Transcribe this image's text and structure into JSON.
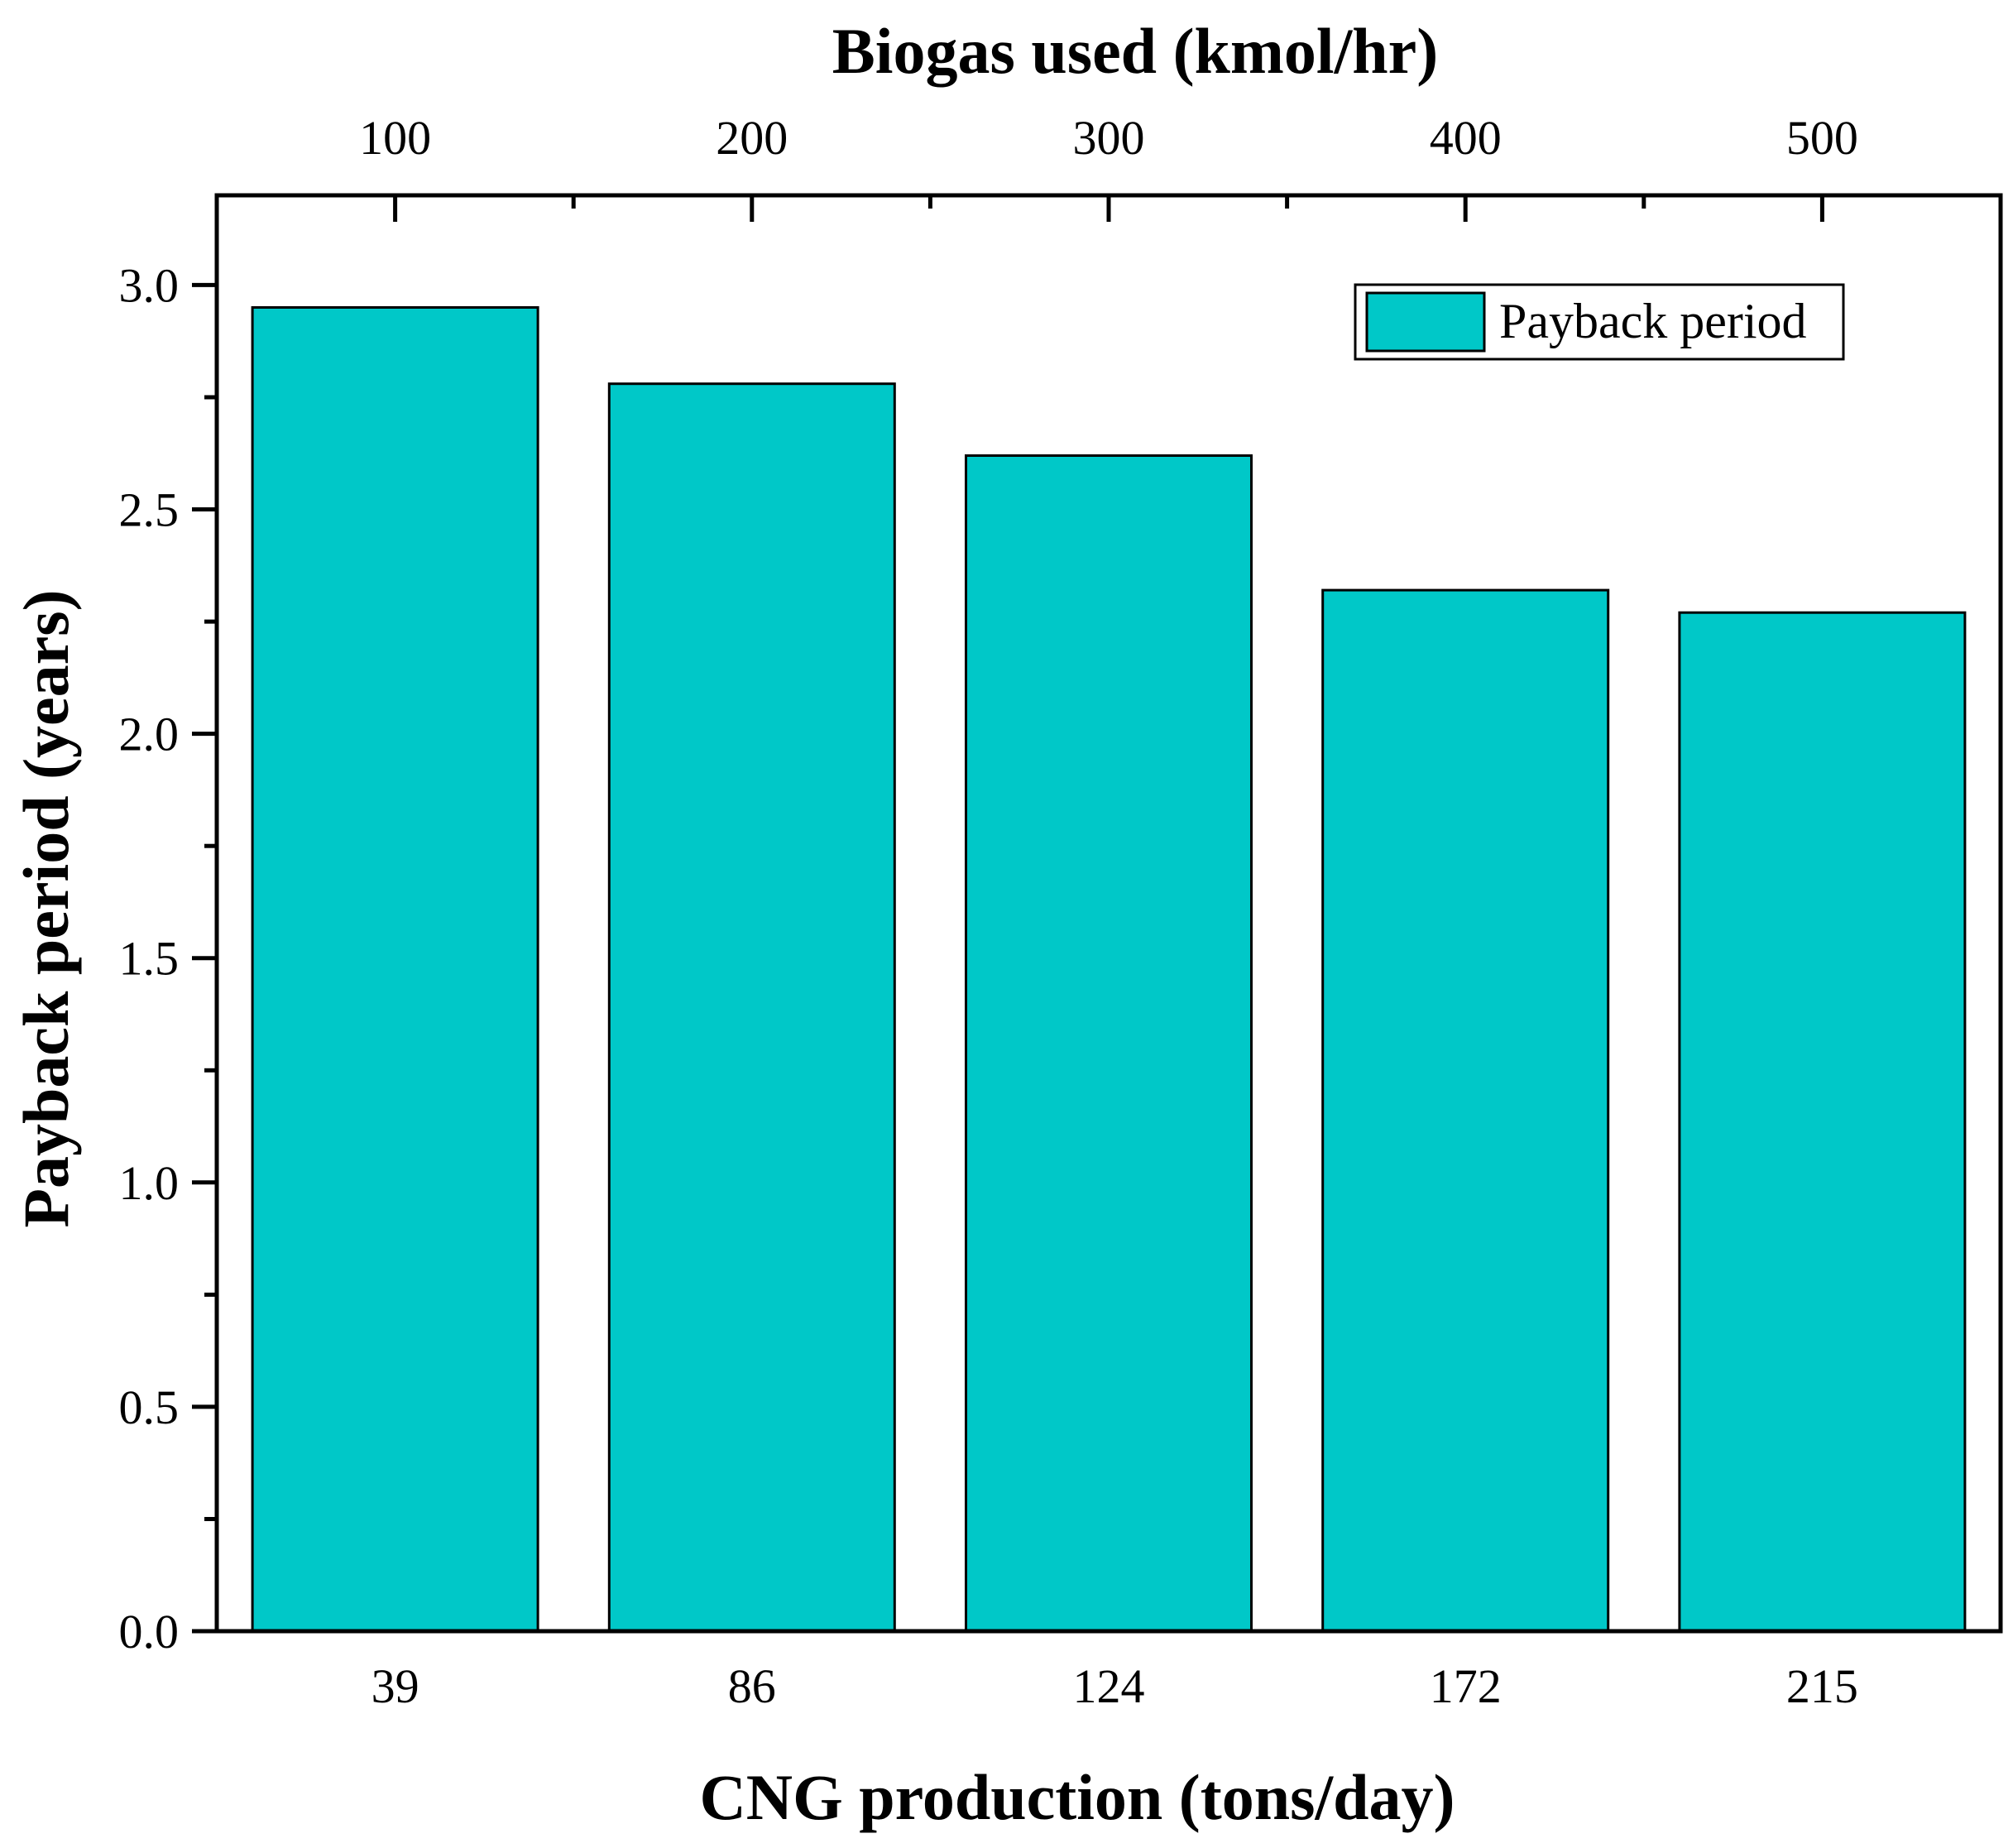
{
  "chart_data": {
    "type": "bar",
    "categories": [
      "39",
      "86",
      "124",
      "172",
      "215"
    ],
    "series": [
      {
        "name": "Payback period",
        "values": [
          2.95,
          2.78,
          2.62,
          2.32,
          2.27
        ]
      }
    ],
    "title": "",
    "xlabel": "CNG production (tons/day)",
    "ylabel": "Payback period (years)",
    "ylim": [
      0,
      3.2
    ],
    "yticks": [
      "0.0",
      "0.5",
      "1.0",
      "1.5",
      "2.0",
      "2.5",
      "3.0"
    ],
    "ytick_values": [
      0,
      0.5,
      1.0,
      1.5,
      2.0,
      2.5,
      3.0
    ],
    "secondary_x": {
      "label": "Biogas used (kmol/hr)",
      "ticks": [
        "100",
        "200",
        "300",
        "400",
        "500"
      ]
    },
    "legend": {
      "position": "top-right",
      "entries": [
        "Payback period"
      ]
    },
    "grid": false,
    "bar_color": "#00C8C8",
    "edge_color": "#000000"
  }
}
